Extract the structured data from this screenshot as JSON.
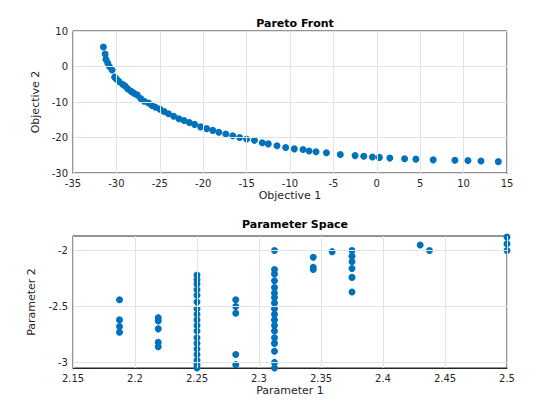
{
  "chart_data": [
    {
      "type": "scatter",
      "title": "Pareto Front",
      "x_label": "Objective 1",
      "y_label": "Objective 2",
      "color": "#0072bd",
      "marker": "circle",
      "grid": true,
      "xlim": [
        -35,
        15
      ],
      "xticks": [
        -35,
        -30,
        -25,
        -20,
        -15,
        -10,
        -5,
        0,
        5,
        10,
        15
      ],
      "ylim": [
        -30,
        10
      ],
      "yticks": [
        -30,
        -20,
        -10,
        0,
        10
      ],
      "x": [
        -31.5,
        -31.3,
        -31.2,
        -31,
        -30.8,
        -30.5,
        -30.2,
        -30,
        -29.7,
        -29.3,
        -29,
        -28.7,
        -28.3,
        -28,
        -27.6,
        -27.2,
        -26.8,
        -26.3,
        -25.9,
        -25.5,
        -25,
        -24.5,
        -24,
        -23.4,
        -22.8,
        -22.2,
        -21.6,
        -21,
        -20.3,
        -19.6,
        -18.9,
        -18.2,
        -17.4,
        -16.6,
        -15.8,
        -15,
        -14.1,
        -13.2,
        -12.5,
        -11.5,
        -10.5,
        -9.5,
        -8.5,
        -7.8,
        -7,
        -5.8,
        -4.2,
        -2.5,
        -1.5,
        -0.5,
        0.3,
        1.5,
        3.2,
        4.5,
        6.5,
        9,
        10.5,
        12,
        14
      ],
      "values": [
        5.5,
        3.5,
        2,
        1,
        0,
        -1,
        -3,
        -3.5,
        -4.2,
        -5,
        -5.5,
        -6.3,
        -7,
        -7.5,
        -8,
        -9,
        -9.8,
        -10.3,
        -11,
        -11.5,
        -12,
        -12.7,
        -13.3,
        -14,
        -14.7,
        -15.2,
        -15.8,
        -16.3,
        -17,
        -17.5,
        -18,
        -18.5,
        -19,
        -19.5,
        -20,
        -20.4,
        -20.8,
        -21.5,
        -21.8,
        -22.3,
        -22.8,
        -23.2,
        -23.4,
        -23.8,
        -24,
        -24.3,
        -24.8,
        -25.1,
        -25.3,
        -25.5,
        -25.6,
        -25.8,
        -26,
        -26.1,
        -26.3,
        -26.4,
        -26.5,
        -26.6,
        -26.8
      ]
    },
    {
      "type": "scatter",
      "title": "Parameter Space",
      "x_label": "Parameter 1",
      "y_label": "Parameter 2",
      "color": "#0072bd",
      "marker": "circle",
      "grid": true,
      "xlim": [
        2.15,
        2.5
      ],
      "xticks": [
        2.15,
        2.2,
        2.25,
        2.3,
        2.35,
        2.4,
        2.45,
        2.5
      ],
      "ylim": [
        -3.05,
        -1.87
      ],
      "yticks": [
        -3,
        -2.5,
        -2
      ],
      "x": [
        2.1875,
        2.1875,
        2.1875,
        2.1875,
        2.21875,
        2.21875,
        2.21875,
        2.21875,
        2.21875,
        2.25,
        2.25,
        2.25,
        2.25,
        2.25,
        2.25,
        2.25,
        2.25,
        2.25,
        2.25,
        2.25,
        2.25,
        2.25,
        2.25,
        2.25,
        2.25,
        2.25,
        2.25,
        2.28125,
        2.28125,
        2.28125,
        2.28125,
        2.28125,
        2.3125,
        2.3125,
        2.3125,
        2.3125,
        2.3125,
        2.3125,
        2.3125,
        2.3125,
        2.3125,
        2.3125,
        2.3125,
        2.3125,
        2.3125,
        2.3125,
        2.3125,
        2.3125,
        2.3125,
        2.3125,
        2.34375,
        2.34375,
        2.34375,
        2.359,
        2.375,
        2.375,
        2.375,
        2.375,
        2.375,
        2.375,
        2.43,
        2.4375,
        2.5,
        2.5,
        2.5
      ],
      "values": [
        -2.44,
        -2.62,
        -2.68,
        -2.73,
        -2.6,
        -2.63,
        -2.7,
        -2.82,
        -2.86,
        -2.22,
        -2.26,
        -2.3,
        -2.35,
        -2.4,
        -2.46,
        -2.52,
        -2.57,
        -2.62,
        -2.67,
        -2.72,
        -2.78,
        -2.83,
        -2.88,
        -2.93,
        -2.98,
        -3.02,
        -3.05,
        -2.44,
        -2.5,
        -2.56,
        -2.93,
        -3.02,
        -2.0,
        -2.17,
        -2.21,
        -2.27,
        -2.33,
        -2.38,
        -2.42,
        -2.47,
        -2.52,
        -2.57,
        -2.62,
        -2.67,
        -2.72,
        -2.78,
        -2.83,
        -2.9,
        -3.0,
        -3.05,
        -2.06,
        -2.15,
        -2.17,
        -2.01,
        -2.0,
        -2.05,
        -2.1,
        -2.16,
        -2.24,
        -2.37,
        -1.95,
        -2.0,
        -1.88,
        -1.94,
        -2.0
      ]
    }
  ]
}
